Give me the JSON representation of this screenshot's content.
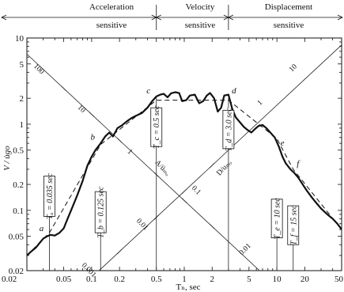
{
  "chart_data": {
    "type": "line",
    "title": "",
    "xlabel": "Tₙ, sec",
    "ylabel": "V / u̇go",
    "xscale": "log",
    "yscale": "log",
    "xlim": [
      0.02,
      50
    ],
    "ylim": [
      0.02,
      10
    ],
    "xticks": [
      {
        "value": 0.02,
        "label": "0.02"
      },
      {
        "value": 0.05,
        "label": "0.05"
      },
      {
        "value": 0.1,
        "label": "0.1"
      },
      {
        "value": 0.2,
        "label": "0.2"
      },
      {
        "value": 0.5,
        "label": "0.5"
      },
      {
        "value": 1,
        "label": "1"
      },
      {
        "value": 2,
        "label": "2"
      },
      {
        "value": 5,
        "label": "5"
      },
      {
        "value": 10,
        "label": "10"
      },
      {
        "value": 20,
        "label": "20"
      },
      {
        "value": 50,
        "label": "50"
      }
    ],
    "yticks": [
      {
        "value": 0.02,
        "label": "0.02"
      },
      {
        "value": 0.05,
        "label": "0.05"
      },
      {
        "value": 0.1,
        "label": "0.1"
      },
      {
        "value": 0.2,
        "label": "0.2"
      },
      {
        "value": 0.5,
        "label": "0.5"
      },
      {
        "value": 1,
        "label": "1"
      },
      {
        "value": 2,
        "label": "2"
      },
      {
        "value": 5,
        "label": "5"
      },
      {
        "value": 10,
        "label": "10"
      }
    ],
    "regions": [
      {
        "label_line1": "Acceleration",
        "label_line2": "sensitive",
        "x_from": 0.02,
        "x_to": 0.5
      },
      {
        "label_line1": "Velocity",
        "label_line2": "sensitive",
        "x_from": 0.5,
        "x_to": 3.0
      },
      {
        "label_line1": "Displacement",
        "label_line2": "sensitive",
        "x_from": 3.0,
        "x_to": 50
      }
    ],
    "periods": [
      {
        "label": "Tₐ = 0.035 sec",
        "value": 0.035,
        "box_y": [
          0.085,
          0.25
        ]
      },
      {
        "label": "T_b = 0.125 sec",
        "value": 0.125,
        "box_y": [
          0.055,
          0.165
        ]
      },
      {
        "label": "T_c = 0.5 sec",
        "value": 0.5,
        "box_y": [
          0.55,
          1.55
        ]
      },
      {
        "label": "T_d = 3.0 sec",
        "value": 3.0,
        "box_y": [
          0.52,
          1.45
        ]
      },
      {
        "label": "T_e = 10 sec",
        "value": 10,
        "box_y": [
          0.048,
          0.135
        ]
      },
      {
        "label": "T_f = 15 sec",
        "value": 15,
        "box_y": [
          0.04,
          0.113
        ]
      }
    ],
    "points": [
      {
        "label": "a",
        "x": 0.035,
        "y": 0.055
      },
      {
        "label": "b",
        "x": 0.125,
        "y": 0.58
      },
      {
        "label": "c",
        "x": 0.5,
        "y": 2.1
      },
      {
        "label": "d",
        "x": 3.0,
        "y": 2.0
      },
      {
        "label": "e",
        "x": 10,
        "y": 0.7
      },
      {
        "label": "f",
        "x": 15,
        "y": 0.3
      }
    ],
    "diagonal_labels": [
      {
        "text": "100",
        "x": 0.026,
        "y": 4.2
      },
      {
        "text": "10",
        "x": 0.075,
        "y": 1.45
      },
      {
        "text": "1",
        "x": 0.25,
        "y": 0.46
      },
      {
        "text": "0.1",
        "x": 1.3,
        "y": 0.165
      },
      {
        "text": "0.01",
        "x": 0.34,
        "y": 0.066
      },
      {
        "text": "0.001",
        "x": 0.09,
        "y": 0.0195
      },
      {
        "text": "0.01",
        "x": 4.7,
        "y": 0.034
      },
      {
        "text": "10",
        "x": 15.5,
        "y": 4.3
      },
      {
        "text": "1",
        "x": 6.8,
        "y": 1.7
      },
      {
        "text": "A/üₘₒ",
        "x": 0.56,
        "y": 0.3
      },
      {
        "text": "D/uₘₒ",
        "x": 2.8,
        "y": 0.3
      }
    ],
    "series": [
      {
        "name": "spectrum",
        "style": "solid",
        "x": [
          0.02,
          0.022,
          0.025,
          0.028,
          0.03,
          0.033,
          0.036,
          0.04,
          0.045,
          0.05,
          0.055,
          0.06,
          0.07,
          0.08,
          0.09,
          0.1,
          0.11,
          0.125,
          0.14,
          0.155,
          0.17,
          0.19,
          0.21,
          0.24,
          0.27,
          0.3,
          0.35,
          0.4,
          0.45,
          0.5,
          0.55,
          0.6,
          0.66,
          0.72,
          0.8,
          0.88,
          0.95,
          1.05,
          1.15,
          1.3,
          1.45,
          1.6,
          1.75,
          1.9,
          2.1,
          2.3,
          2.5,
          2.7,
          3.0,
          3.3,
          3.6,
          4.0,
          4.4,
          4.8,
          5.3,
          5.8,
          6.3,
          7.0,
          7.7,
          8.5,
          9.5,
          10.5,
          11.5,
          12.5,
          14,
          15.5,
          17,
          19,
          21,
          24,
          27,
          30,
          35,
          40,
          45,
          50
        ],
        "y": [
          0.03,
          0.033,
          0.037,
          0.043,
          0.047,
          0.05,
          0.052,
          0.051,
          0.055,
          0.062,
          0.08,
          0.1,
          0.15,
          0.22,
          0.33,
          0.42,
          0.5,
          0.6,
          0.72,
          0.8,
          0.72,
          0.9,
          0.96,
          1.08,
          1.18,
          1.25,
          1.35,
          1.55,
          1.85,
          2.1,
          2.2,
          2.25,
          2.05,
          2.28,
          2.35,
          2.3,
          1.85,
          1.9,
          2.15,
          2.2,
          1.75,
          1.85,
          2.15,
          2.3,
          2.0,
          1.4,
          1.55,
          2.15,
          2.2,
          1.5,
          1.2,
          1.05,
          0.93,
          0.86,
          0.8,
          0.88,
          0.95,
          0.98,
          0.9,
          0.8,
          0.7,
          0.55,
          0.42,
          0.35,
          0.3,
          0.27,
          0.24,
          0.2,
          0.17,
          0.14,
          0.12,
          0.105,
          0.09,
          0.08,
          0.07,
          0.06
        ]
      },
      {
        "name": "idealized",
        "style": "dashed",
        "x": [
          0.02,
          0.035,
          0.125,
          0.5,
          3.0,
          10,
          15,
          50
        ],
        "y": [
          0.03,
          0.055,
          0.58,
          1.9,
          1.9,
          0.68,
          0.3,
          0.06
        ]
      }
    ],
    "grid": false
  }
}
